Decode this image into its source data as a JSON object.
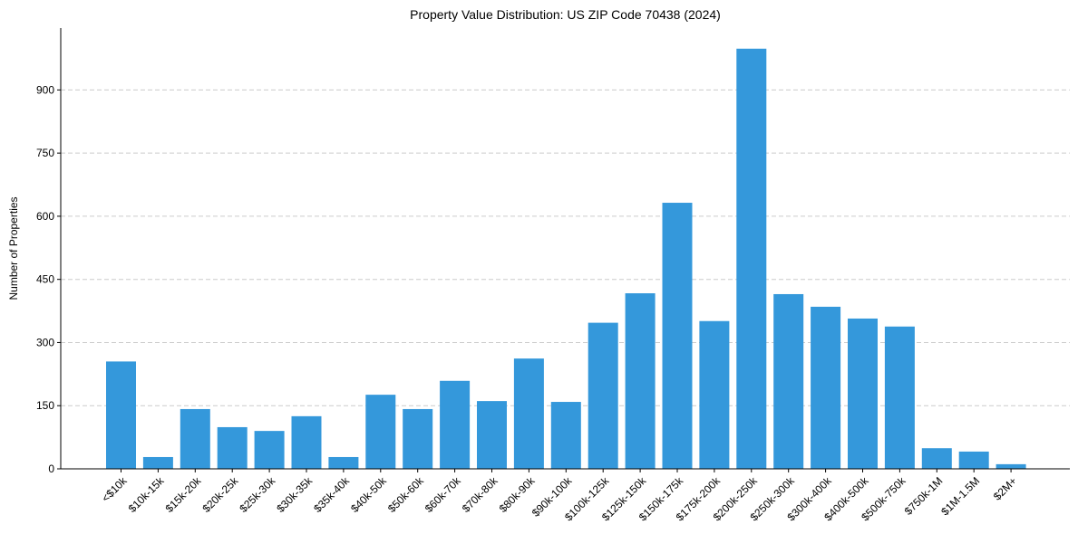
{
  "chart_data": {
    "type": "bar",
    "title": "Property Value Distribution: US ZIP Code 70438 (2024)",
    "xlabel": "",
    "ylabel": "Number of Properties",
    "categories": [
      "<$10k",
      "$10k-15k",
      "$15k-20k",
      "$20k-25k",
      "$25k-30k",
      "$30k-35k",
      "$35k-40k",
      "$40k-50k",
      "$50k-60k",
      "$60k-70k",
      "$70k-80k",
      "$80k-90k",
      "$90k-100k",
      "$100k-125k",
      "$125k-150k",
      "$150k-175k",
      "$175k-200k",
      "$200k-250k",
      "$250k-300k",
      "$300k-400k",
      "$400k-500k",
      "$500k-750k",
      "$750k-1M",
      "$1M-1.5M",
      "$2M+"
    ],
    "values": [
      255,
      28,
      142,
      99,
      90,
      125,
      28,
      176,
      142,
      209,
      161,
      262,
      159,
      347,
      417,
      632,
      351,
      998,
      415,
      385,
      357,
      338,
      49,
      41,
      11
    ],
    "ylim": [
      0,
      1047
    ],
    "yticks": [
      0,
      150,
      300,
      450,
      600,
      750,
      900
    ],
    "grid": "y-dashed",
    "bar_color": "#3498db",
    "grid_color": "#cccccc",
    "axis_color": "#000000"
  }
}
